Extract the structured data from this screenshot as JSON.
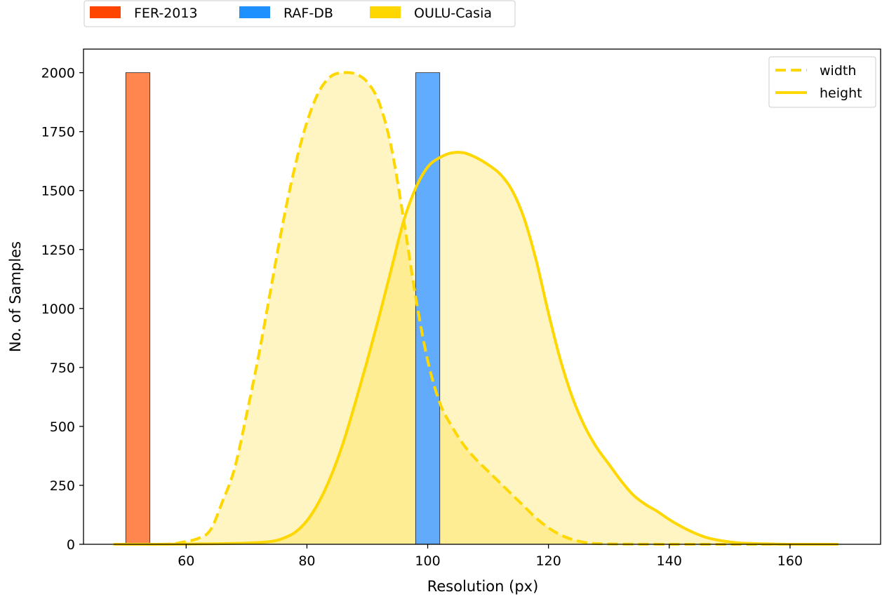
{
  "chart_data": {
    "type": "bar",
    "xlabel": "Resolution (px)",
    "ylabel": "No. of Samples",
    "xlim": [
      43,
      175
    ],
    "ylim": [
      0,
      2100
    ],
    "xticks": [
      60,
      80,
      100,
      120,
      140,
      160
    ],
    "yticks": [
      0,
      250,
      500,
      750,
      1000,
      1250,
      1500,
      1750,
      2000
    ],
    "grid": false,
    "dataset_legend": {
      "placement": "top-left-outside",
      "entries": [
        {
          "name": "FER-2013",
          "color": "#FF4500"
        },
        {
          "name": "RAF-DB",
          "color": "#1E90FF"
        },
        {
          "name": "OULU-Casia",
          "color": "#FFD700"
        }
      ]
    },
    "curve_legend": {
      "placement": "top-right",
      "entries": [
        {
          "name": "width",
          "style": "dashed"
        },
        {
          "name": "height",
          "style": "solid"
        }
      ]
    },
    "bars": [
      {
        "dataset": "FER-2013",
        "x0": 50,
        "x1": 54,
        "value": 2000,
        "color": "#FF7F44"
      },
      {
        "dataset": "RAF-DB",
        "x0": 98,
        "x1": 102,
        "value": 2000,
        "color": "#58A8FF"
      }
    ],
    "series": [
      {
        "name": "width",
        "dataset": "OULU-Casia",
        "style": "dashed",
        "color": "#FFD700",
        "points": [
          [
            48,
            0
          ],
          [
            52,
            0
          ],
          [
            56,
            0
          ],
          [
            58,
            3
          ],
          [
            60,
            12
          ],
          [
            62,
            25
          ],
          [
            64,
            60
          ],
          [
            66,
            180
          ],
          [
            68,
            320
          ],
          [
            70,
            550
          ],
          [
            72,
            800
          ],
          [
            74,
            1080
          ],
          [
            76,
            1360
          ],
          [
            78,
            1600
          ],
          [
            80,
            1790
          ],
          [
            82,
            1920
          ],
          [
            84,
            1985
          ],
          [
            86,
            2000
          ],
          [
            88,
            1995
          ],
          [
            90,
            1960
          ],
          [
            92,
            1870
          ],
          [
            94,
            1680
          ],
          [
            96,
            1380
          ],
          [
            98,
            1050
          ],
          [
            100,
            780
          ],
          [
            102,
            600
          ],
          [
            104,
            500
          ],
          [
            106,
            420
          ],
          [
            108,
            360
          ],
          [
            110,
            310
          ],
          [
            112,
            260
          ],
          [
            114,
            210
          ],
          [
            116,
            160
          ],
          [
            118,
            110
          ],
          [
            120,
            70
          ],
          [
            122,
            40
          ],
          [
            124,
            20
          ],
          [
            126,
            8
          ],
          [
            128,
            3
          ],
          [
            132,
            1
          ],
          [
            140,
            0
          ],
          [
            150,
            0
          ],
          [
            160,
            0
          ],
          [
            168,
            0
          ]
        ]
      },
      {
        "name": "height",
        "dataset": "OULU-Casia",
        "style": "solid",
        "color": "#FFD700",
        "points": [
          [
            48,
            0
          ],
          [
            56,
            0
          ],
          [
            64,
            2
          ],
          [
            70,
            5
          ],
          [
            74,
            12
          ],
          [
            76,
            25
          ],
          [
            78,
            50
          ],
          [
            80,
            100
          ],
          [
            82,
            180
          ],
          [
            84,
            290
          ],
          [
            86,
            430
          ],
          [
            88,
            600
          ],
          [
            90,
            780
          ],
          [
            92,
            970
          ],
          [
            94,
            1170
          ],
          [
            96,
            1370
          ],
          [
            98,
            1510
          ],
          [
            100,
            1600
          ],
          [
            102,
            1640
          ],
          [
            104,
            1660
          ],
          [
            106,
            1660
          ],
          [
            108,
            1640
          ],
          [
            110,
            1610
          ],
          [
            112,
            1570
          ],
          [
            114,
            1500
          ],
          [
            116,
            1380
          ],
          [
            118,
            1200
          ],
          [
            120,
            980
          ],
          [
            122,
            780
          ],
          [
            124,
            620
          ],
          [
            126,
            500
          ],
          [
            128,
            410
          ],
          [
            130,
            340
          ],
          [
            132,
            270
          ],
          [
            134,
            210
          ],
          [
            136,
            170
          ],
          [
            138,
            140
          ],
          [
            140,
            105
          ],
          [
            142,
            75
          ],
          [
            144,
            50
          ],
          [
            146,
            30
          ],
          [
            148,
            18
          ],
          [
            150,
            10
          ],
          [
            152,
            5
          ],
          [
            156,
            2
          ],
          [
            160,
            0
          ],
          [
            168,
            0
          ]
        ]
      }
    ]
  }
}
